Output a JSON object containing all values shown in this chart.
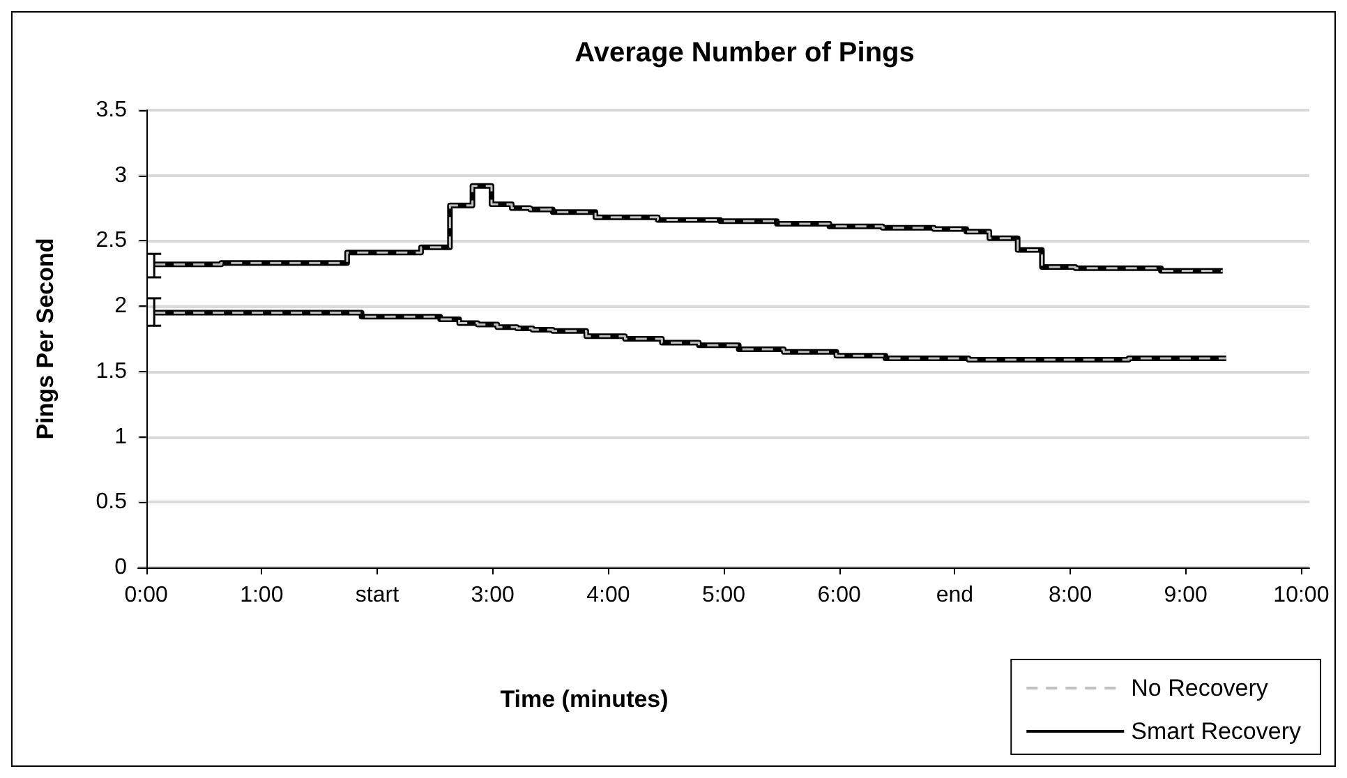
{
  "chart_data": {
    "type": "step",
    "title": "Average Number of Pings",
    "xlabel": "Time (minutes)",
    "ylabel": "Pings Per Second",
    "xlim": [
      -0.07,
      10.07
    ],
    "xticks": [
      {
        "value": 0,
        "label": "0:00"
      },
      {
        "value": 1,
        "label": "1:00"
      },
      {
        "value": 2,
        "label": "start"
      },
      {
        "value": 3,
        "label": "3:00"
      },
      {
        "value": 4,
        "label": "4:00"
      },
      {
        "value": 5,
        "label": "5:00"
      },
      {
        "value": 6,
        "label": "6:00"
      },
      {
        "value": 7,
        "label": "end"
      },
      {
        "value": 8,
        "label": "8:00"
      },
      {
        "value": 9,
        "label": "9:00"
      },
      {
        "value": 10,
        "label": "10:00"
      }
    ],
    "ylim": [
      0,
      3.5
    ],
    "yticks": [
      0,
      0.5,
      1,
      1.5,
      2,
      2.5,
      3,
      3.5
    ],
    "grid": "y",
    "legend": "bottom right",
    "marker": "none",
    "series": [
      {
        "name": "Smart Recovery",
        "color": "#000000",
        "line_style": "solid",
        "x": [
          0.07,
          1.23,
          2.25,
          2.51,
          2.75,
          2.9,
          3.08,
          3.25,
          3.4,
          3.64,
          4.14,
          4.72,
          5.22,
          5.7,
          6.13,
          6.62,
          7.02,
          7.18,
          7.42,
          7.67,
          7.84,
          8.25,
          9.32
        ],
        "values": [
          2.32,
          2.33,
          2.41,
          2.45,
          2.77,
          2.92,
          2.78,
          2.75,
          2.74,
          2.72,
          2.68,
          2.66,
          2.65,
          2.63,
          2.61,
          2.6,
          2.59,
          2.57,
          2.52,
          2.43,
          2.3,
          2.29,
          2.27
        ],
        "errors": [
          [
            2.22,
            2.4
          ],
          null,
          null,
          null,
          null,
          null,
          null,
          null,
          null,
          null,
          null,
          null,
          null,
          null,
          null,
          null,
          null,
          null,
          null,
          null,
          null,
          null,
          null
        ]
      },
      {
        "color": "#000000",
        "line_style": "solid",
        "x": [
          0.07,
          1.27,
          2.46,
          2.63,
          2.79,
          2.95,
          3.13,
          3.29,
          3.4,
          3.64,
          3.98,
          4.31,
          4.62,
          4.95,
          5.31,
          5.73,
          6.22,
          6.58,
          7.66,
          9.35
        ],
        "values": [
          1.95,
          1.95,
          1.92,
          1.9,
          1.87,
          1.86,
          1.84,
          1.83,
          1.82,
          1.81,
          1.77,
          1.75,
          1.72,
          1.7,
          1.67,
          1.65,
          1.62,
          1.6,
          1.59,
          1.6
        ],
        "errors": [
          [
            1.85,
            2.06
          ],
          null,
          null,
          null,
          null,
          null,
          null,
          null,
          null,
          null,
          null,
          null,
          null,
          null,
          null,
          null,
          null,
          null,
          null,
          null
        ]
      },
      {
        "name": "No Recovery",
        "color": "#c0c0c0",
        "line_style": "dashed",
        "x": [
          0.07,
          1.23,
          2.25,
          2.51,
          2.75,
          2.9,
          3.08,
          3.25,
          3.4,
          3.64,
          4.14,
          4.72,
          5.22,
          5.7,
          6.13,
          6.62,
          7.02,
          7.18,
          7.42,
          7.67,
          7.84,
          8.25,
          9.32
        ],
        "values": [
          2.32,
          2.33,
          2.41,
          2.45,
          2.77,
          2.92,
          2.78,
          2.75,
          2.74,
          2.72,
          2.68,
          2.66,
          2.65,
          2.63,
          2.61,
          2.6,
          2.59,
          2.57,
          2.52,
          2.43,
          2.3,
          2.29,
          2.27
        ]
      },
      {
        "color": "#c0c0c0",
        "line_style": "dashed",
        "x": [
          0.07,
          1.27,
          2.46,
          2.63,
          2.79,
          2.95,
          3.13,
          3.29,
          3.4,
          3.64,
          3.98,
          4.31,
          4.62,
          4.95,
          5.31,
          5.73,
          6.22,
          6.58,
          7.66,
          9.35
        ],
        "values": [
          1.95,
          1.95,
          1.92,
          1.9,
          1.87,
          1.86,
          1.84,
          1.83,
          1.82,
          1.81,
          1.77,
          1.75,
          1.72,
          1.7,
          1.67,
          1.65,
          1.62,
          1.6,
          1.59,
          1.6
        ]
      }
    ]
  }
}
